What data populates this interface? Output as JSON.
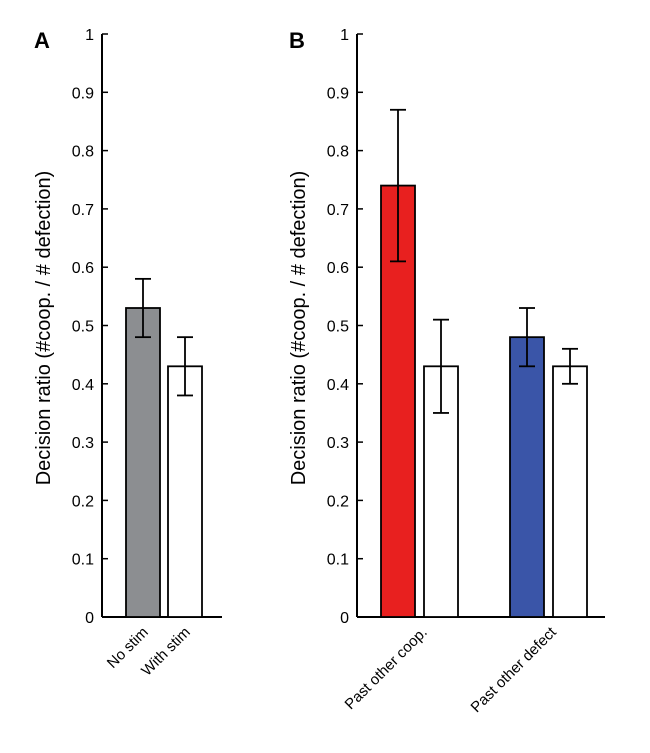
{
  "chart_data": [
    {
      "panel": "A",
      "type": "bar",
      "ylabel": "Decision ratio (#coop. / # defection)",
      "ylim": [
        0,
        1
      ],
      "yticks": [
        "0",
        "0.1",
        "0.2",
        "0.3",
        "0.4",
        "0.5",
        "0.6",
        "0.7",
        "0.8",
        "0.9",
        "1"
      ],
      "groups": [
        {
          "label": "",
          "bars": [
            {
              "category": "No stim",
              "value": 0.53,
              "err_low": 0.48,
              "err_high": 0.58,
              "fill": "#8c8e91"
            },
            {
              "category": "With stim",
              "value": 0.43,
              "err_low": 0.38,
              "err_high": 0.48,
              "fill": "#ffffff"
            }
          ]
        }
      ],
      "grid": false
    },
    {
      "panel": "B",
      "type": "bar",
      "ylabel": "Decision ratio (#coop. / # defection)",
      "ylim": [
        0,
        1
      ],
      "yticks": [
        "0",
        "0.1",
        "0.2",
        "0.3",
        "0.4",
        "0.5",
        "0.6",
        "0.7",
        "0.8",
        "0.9",
        "1"
      ],
      "groups": [
        {
          "label": "Past other coop.",
          "bars": [
            {
              "category": "",
              "value": 0.74,
              "err_low": 0.61,
              "err_high": 0.87,
              "fill": "#e8201f"
            },
            {
              "category": "",
              "value": 0.43,
              "err_low": 0.35,
              "err_high": 0.51,
              "fill": "#ffffff"
            }
          ]
        },
        {
          "label": "Past other defect",
          "bars": [
            {
              "category": "",
              "value": 0.48,
              "err_low": 0.43,
              "err_high": 0.53,
              "fill": "#3a55a8"
            },
            {
              "category": "",
              "value": 0.43,
              "err_low": 0.4,
              "err_high": 0.46,
              "fill": "#ffffff"
            }
          ]
        }
      ],
      "grid": false
    }
  ]
}
